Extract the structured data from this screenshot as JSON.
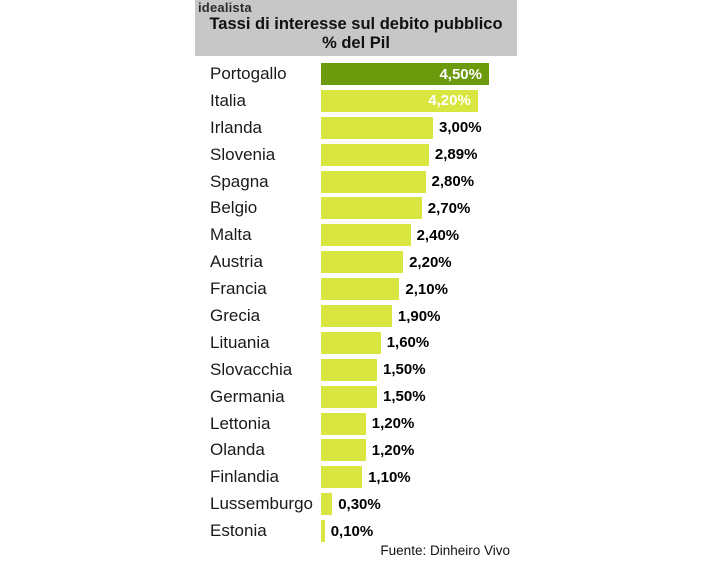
{
  "header": {
    "logo": "idealista",
    "title": "Tassi di interesse sul debito pubblico",
    "subtitle": "% del Pil"
  },
  "footer": {
    "source": "Fuente: Dinheiro Vivo"
  },
  "chart_data": {
    "type": "bar",
    "orientation": "horizontal",
    "title": "Tassi di interesse sul debito pubblico",
    "subtitle": "% del Pil",
    "source": "Fuente: Dinheiro Vivo",
    "axis_max": 4.5,
    "grid": false,
    "legend": false,
    "categories": [
      "Portogallo",
      "Italia",
      "Irlanda",
      "Slovenia",
      "Spagna",
      "Belgio",
      "Malta",
      "Austria",
      "Francia",
      "Grecia",
      "Lituania",
      "Slovacchia",
      "Germania",
      "Lettonia",
      "Olanda",
      "Finlandia",
      "Lussemburgo",
      "Estonia"
    ],
    "values": [
      4.5,
      4.2,
      3.0,
      2.89,
      2.8,
      2.7,
      2.4,
      2.2,
      2.1,
      1.9,
      1.6,
      1.5,
      1.5,
      1.2,
      1.2,
      1.1,
      0.3,
      0.1
    ],
    "rows": [
      {
        "country": "Portogallo",
        "value": 4.5,
        "value_label": "4,50%",
        "highlight": true,
        "label_inside": true
      },
      {
        "country": "Italia",
        "value": 4.2,
        "value_label": "4,20%",
        "highlight": false,
        "label_inside": true
      },
      {
        "country": "Irlanda",
        "value": 3.0,
        "value_label": "3,00%",
        "highlight": false,
        "label_inside": false
      },
      {
        "country": "Slovenia",
        "value": 2.89,
        "value_label": "2,89%",
        "highlight": false,
        "label_inside": false
      },
      {
        "country": "Spagna",
        "value": 2.8,
        "value_label": "2,80%",
        "highlight": false,
        "label_inside": false
      },
      {
        "country": "Belgio",
        "value": 2.7,
        "value_label": "2,70%",
        "highlight": false,
        "label_inside": false
      },
      {
        "country": "Malta",
        "value": 2.4,
        "value_label": "2,40%",
        "highlight": false,
        "label_inside": false
      },
      {
        "country": "Austria",
        "value": 2.2,
        "value_label": "2,20%",
        "highlight": false,
        "label_inside": false
      },
      {
        "country": "Francia",
        "value": 2.1,
        "value_label": "2,10%",
        "highlight": false,
        "label_inside": false
      },
      {
        "country": "Grecia",
        "value": 1.9,
        "value_label": "1,90%",
        "highlight": false,
        "label_inside": false
      },
      {
        "country": "Lituania",
        "value": 1.6,
        "value_label": "1,60%",
        "highlight": false,
        "label_inside": false
      },
      {
        "country": "Slovacchia",
        "value": 1.5,
        "value_label": "1,50%",
        "highlight": false,
        "label_inside": false
      },
      {
        "country": "Germania",
        "value": 1.5,
        "value_label": "1,50%",
        "highlight": false,
        "label_inside": false
      },
      {
        "country": "Lettonia",
        "value": 1.2,
        "value_label": "1,20%",
        "highlight": false,
        "label_inside": false
      },
      {
        "country": "Olanda",
        "value": 1.2,
        "value_label": "1,20%",
        "highlight": false,
        "label_inside": false
      },
      {
        "country": "Finlandia",
        "value": 1.1,
        "value_label": "1,10%",
        "highlight": false,
        "label_inside": false
      },
      {
        "country": "Lussemburgo",
        "value": 0.3,
        "value_label": "0,30%",
        "highlight": false,
        "label_inside": false
      },
      {
        "country": "Estonia",
        "value": 0.1,
        "value_label": "0,10%",
        "highlight": false,
        "label_inside": false
      }
    ],
    "colors": {
      "bar": "#d9e63f",
      "highlight_bar": "#6b9a0c",
      "header_bg": "#c7c7c7",
      "country_text": "#1a1a1a",
      "value_text": "#000000",
      "inside_value_text": "#ffffff"
    }
  }
}
